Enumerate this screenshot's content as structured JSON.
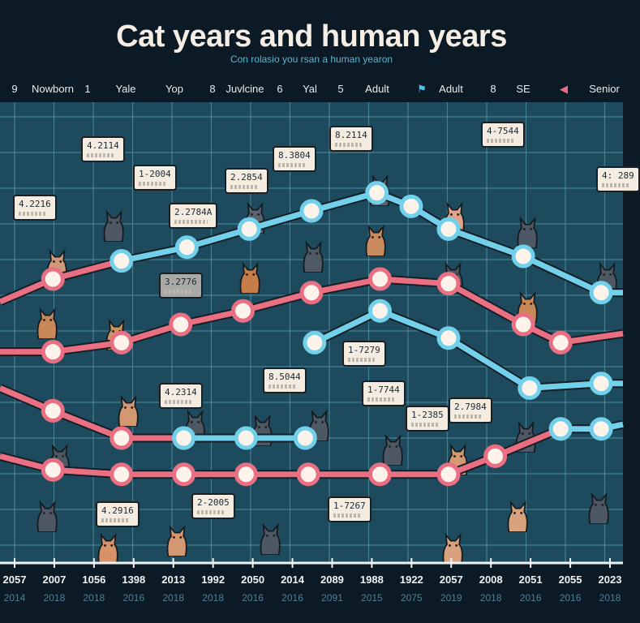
{
  "title": "Cat years and human years",
  "subtitle": "Con rolasio you rsan a human yearon",
  "header_labels": [
    "9",
    "Nowborn",
    "1",
    "Yale",
    "Yop",
    "8",
    "Juvlcine",
    "6",
    "Yal",
    "5",
    "Adult",
    "Adult",
    "8",
    "SE",
    "Senior"
  ],
  "callouts": [
    "4.2114",
    "4.2216",
    "1-2004",
    "2.2784A",
    "2.2854",
    "8.3804",
    "8.2114",
    "4-7544",
    "4: 289",
    "3.2776",
    "8.5044",
    "4.2314",
    "1-7279",
    "1-7744",
    "1-2385",
    "2.7984",
    "4.2916",
    "2-2005",
    "1-7267"
  ],
  "colors": {
    "pink": "#ea6f83",
    "blue": "#72d0ea",
    "node": "#fdf3ea",
    "plot_bg": "#1d4b5d",
    "grid": "#4f8ea0"
  },
  "chart_data": {
    "type": "line",
    "title": "Cat years and human years",
    "xlabel": "",
    "ylabel": "",
    "xlim": [
      0,
      100
    ],
    "ylim": [
      0,
      100
    ],
    "grid": true,
    "x_tick_labels": [
      "2057",
      "2007",
      "1056",
      "1398",
      "2013",
      "1992",
      "2050",
      "2014",
      "2089",
      "1988",
      "1922",
      "2057",
      "2008",
      "2051",
      "2055",
      "2023"
    ],
    "x_tick_sublabels": [
      "2014",
      "2018",
      "2018",
      "2016",
      "2018",
      "2018",
      "2016",
      "2016",
      "2091",
      "2015",
      "2075",
      "2019",
      "2018",
      "2016",
      "2016",
      "2018"
    ],
    "series": [
      {
        "name": "pink-a",
        "color": "pink",
        "nodes": true,
        "x": [
          0,
          8.5,
          19.5
        ],
        "y": [
          55,
          60,
          64
        ]
      },
      {
        "name": "blue-a",
        "color": "blue",
        "nodes": true,
        "x": [
          19.5,
          30,
          40,
          50,
          60.5,
          66,
          72,
          84,
          96.5,
          100
        ],
        "y": [
          64,
          67,
          71,
          75,
          79,
          76,
          71,
          65,
          57,
          57
        ]
      },
      {
        "name": "pink-b",
        "color": "pink",
        "nodes": true,
        "x": [
          0,
          8.5,
          19.5,
          29,
          39,
          50,
          61,
          72,
          84,
          90,
          100
        ],
        "y": [
          44,
          44,
          46,
          50,
          53,
          57,
          60,
          59,
          50,
          46,
          48
        ]
      },
      {
        "name": "blue-b",
        "color": "blue",
        "nodes": true,
        "x": [
          50.5,
          61,
          72,
          85,
          96.5,
          100
        ],
        "y": [
          46,
          53,
          47,
          36,
          37,
          37
        ]
      },
      {
        "name": "pink-c",
        "color": "pink",
        "nodes": true,
        "x": [
          0,
          8.5,
          19.5,
          29.5
        ],
        "y": [
          36,
          31,
          25,
          25
        ]
      },
      {
        "name": "blue-c",
        "color": "blue",
        "nodes": true,
        "x": [
          29.5,
          39.5,
          49
        ],
        "y": [
          25,
          25,
          25
        ]
      },
      {
        "name": "pink-d",
        "color": "pink",
        "nodes": true,
        "x": [
          0,
          8.5,
          19.5,
          29.5,
          39.5,
          49.5,
          61,
          72,
          79.5,
          90
        ],
        "y": [
          21,
          18,
          17,
          17,
          17,
          17,
          17,
          17,
          21,
          27
        ]
      },
      {
        "name": "blue-d",
        "color": "blue",
        "nodes": true,
        "x": [
          90,
          96.5,
          100
        ],
        "y": [
          27,
          27,
          28
        ]
      }
    ]
  }
}
